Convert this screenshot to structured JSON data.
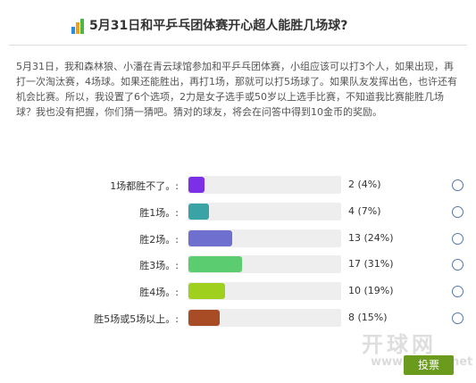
{
  "header": {
    "title": "5月31日和平乒乓团体赛开心超人能胜几场球?"
  },
  "description": "5月31日，我和森林狼、小潘在青云球馆参加和平乒乓团体赛，小组应该可以打3个人，如果出现，再打一次淘汰赛，4场球。如果还能胜出，再打1场，那就可以打5场球了。如果队友发挥出色，也许还有机会比赛。所以，我设置了6个选项，2力是女子选手或50岁以上选手比赛，不知道我比赛能胜几场球？我也没有把握，你们猜一猜吧。猜对的球友，将会在问答中得到10金币的奖励。",
  "options": [
    {
      "label": "1场都胜不了。:",
      "result": "2 (4%)",
      "percent": 4,
      "color": "#7b2fe6"
    },
    {
      "label": "胜1场。:",
      "result": "4 (7%)",
      "percent": 7,
      "color": "#3aa3a6"
    },
    {
      "label": "胜2场。:",
      "result": "13 (24%)",
      "percent": 24,
      "color": "#6f6fcf"
    },
    {
      "label": "胜3场。:",
      "result": "17 (31%)",
      "percent": 31,
      "color": "#5ccc70"
    },
    {
      "label": "胜4场。:",
      "result": "10 (19%)",
      "percent": 19,
      "color": "#9fd01e"
    },
    {
      "label": "胜5场或5场以上。:",
      "result": "8 (15%)",
      "percent": 15,
      "color": "#a84c26"
    }
  ],
  "button": "投票",
  "watermark": {
    "name": "开球网",
    "url": "www.kaiqiu.net"
  }
}
